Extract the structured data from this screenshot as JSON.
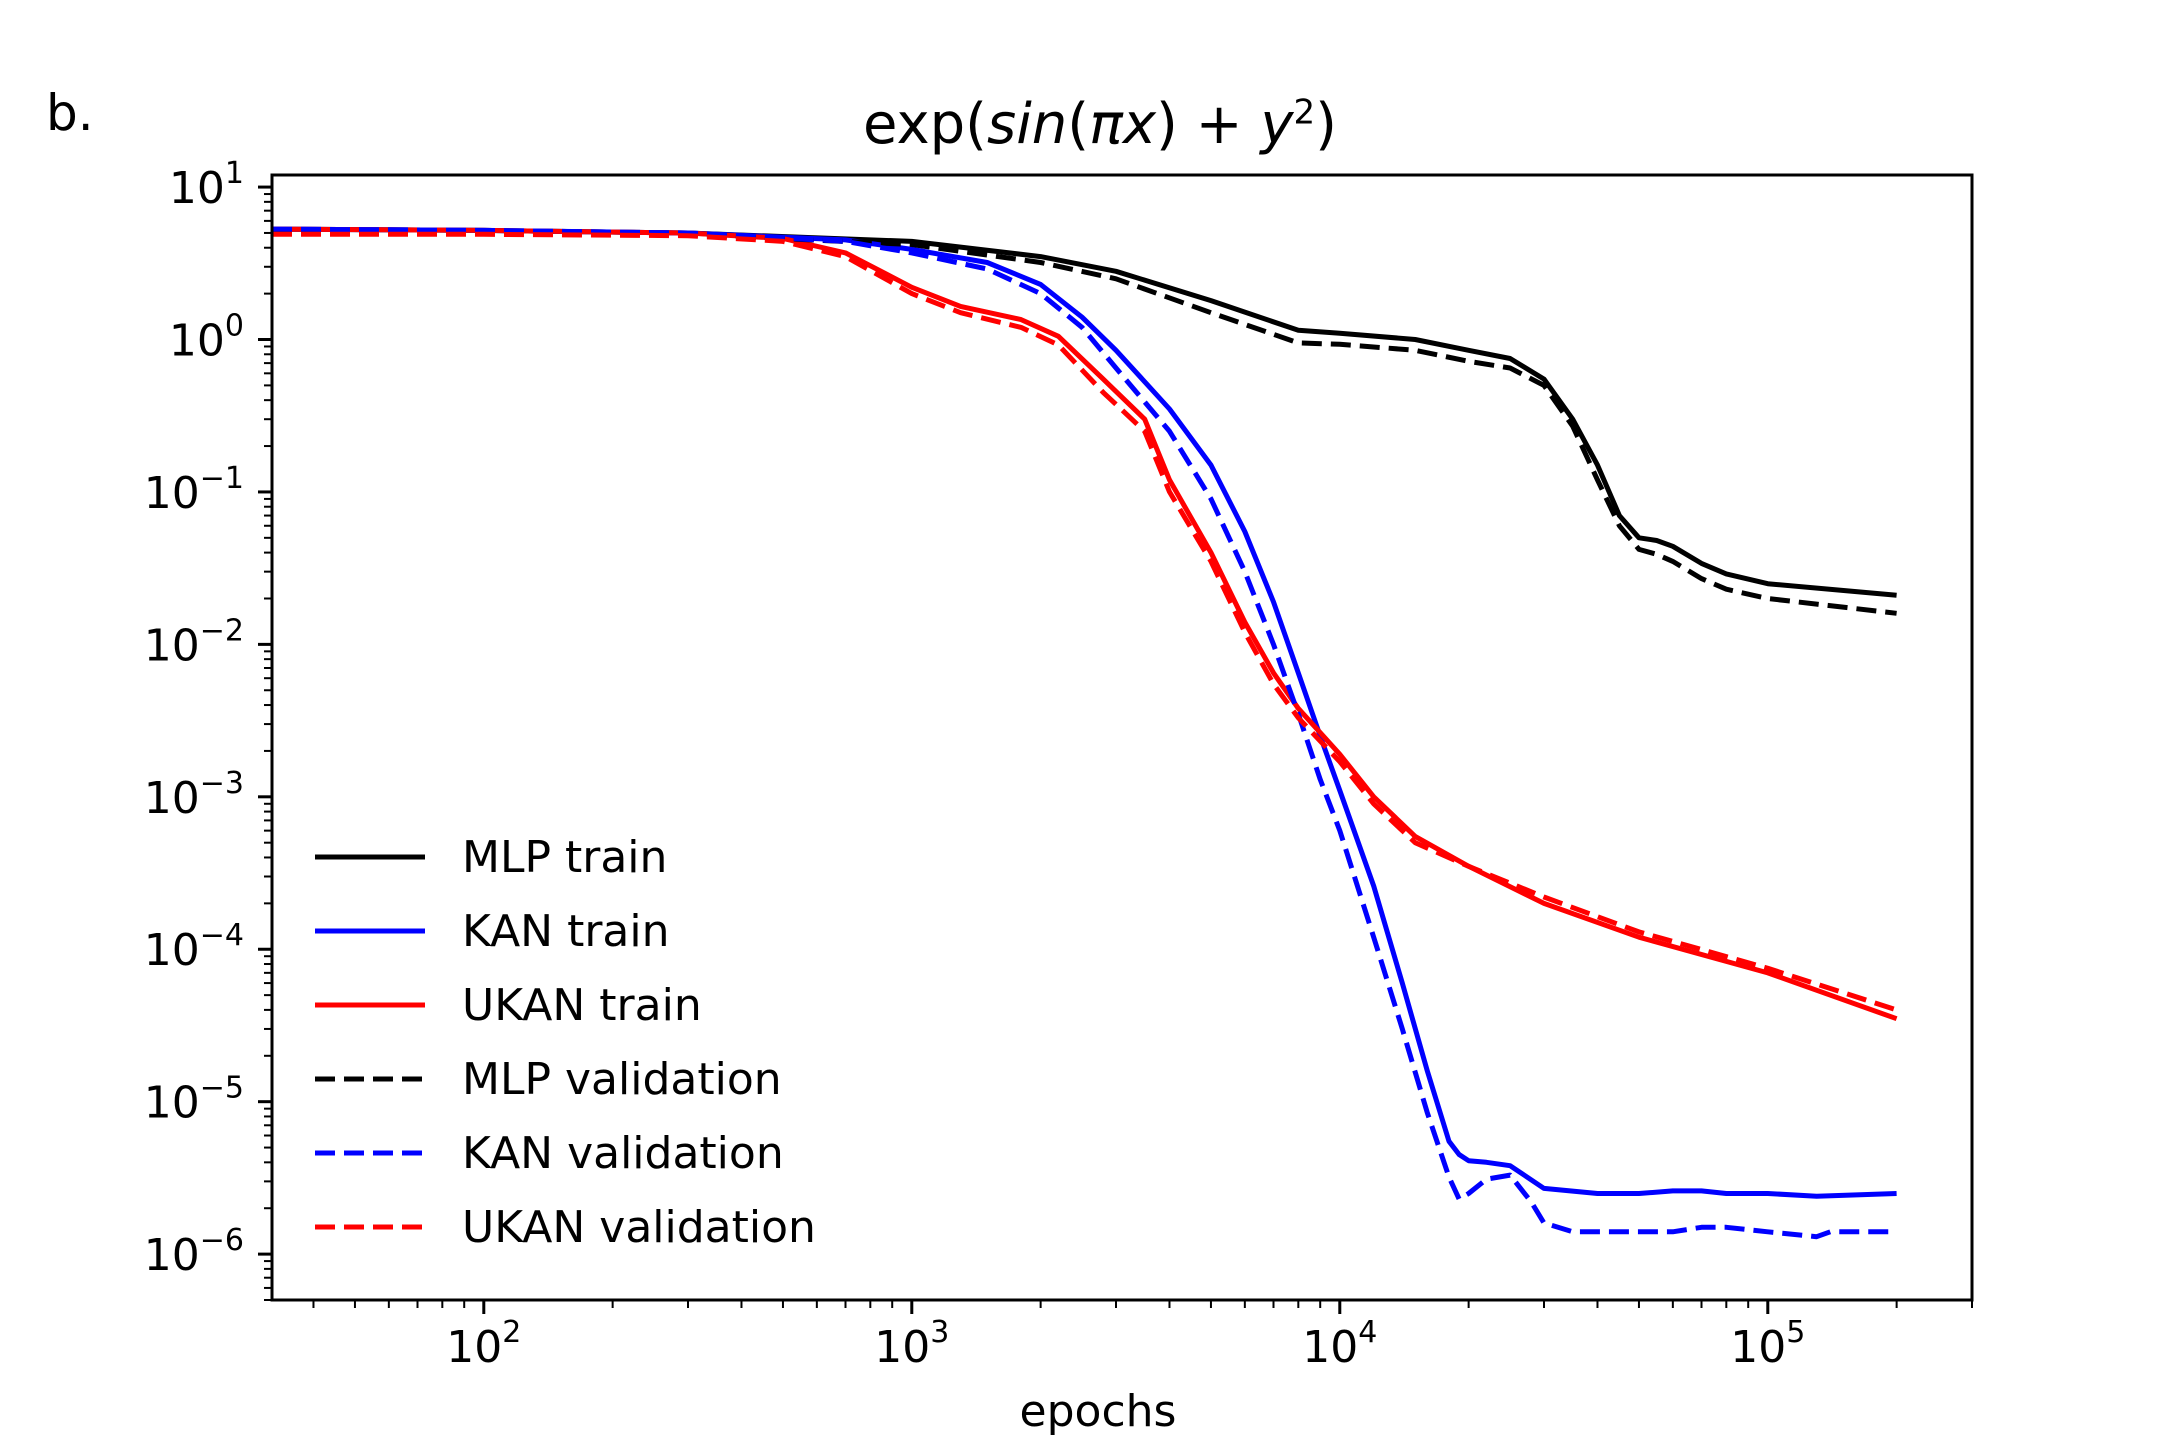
{
  "panel_label": "b.",
  "chart_data": {
    "type": "line",
    "title": "exp(sin(πx) + y²)",
    "title_parts": {
      "pre": "exp(",
      "func": "sin",
      "open": "(",
      "pix": "πx",
      "mid": ") + ",
      "yvar": "y",
      "sup": "2",
      "post": ")"
    },
    "xlabel": "epochs",
    "ylabel": "",
    "xscale": "log",
    "yscale": "log",
    "xlim": [
      32,
      300000
    ],
    "ylim": [
      5e-07,
      12
    ],
    "xticks": [
      {
        "value": 100,
        "base": "10",
        "exp": "2"
      },
      {
        "value": 1000,
        "base": "10",
        "exp": "3"
      },
      {
        "value": 10000,
        "base": "10",
        "exp": "4"
      },
      {
        "value": 100000,
        "base": "10",
        "exp": "5"
      }
    ],
    "yticks": [
      {
        "value": 10,
        "base": "10",
        "exp": "1"
      },
      {
        "value": 1,
        "base": "10",
        "exp": "0"
      },
      {
        "value": 0.1,
        "base": "10",
        "exp": "−1"
      },
      {
        "value": 0.01,
        "base": "10",
        "exp": "−2"
      },
      {
        "value": 0.001,
        "base": "10",
        "exp": "−3"
      },
      {
        "value": 0.0001,
        "base": "10",
        "exp": "−4"
      },
      {
        "value": 1e-05,
        "base": "10",
        "exp": "−5"
      },
      {
        "value": 1e-06,
        "base": "10",
        "exp": "−6"
      }
    ],
    "legend": {
      "placement": "lower-left"
    },
    "series": [
      {
        "name": "MLP train",
        "color": "#000000",
        "dash": "solid",
        "x": [
          32,
          100,
          300,
          1000,
          2000,
          3000,
          5000,
          8000,
          10000,
          15000,
          20000,
          25000,
          30000,
          35000,
          40000,
          45000,
          50000,
          55000,
          60000,
          70000,
          80000,
          100000,
          200000
        ],
        "y": [
          5.3,
          5.2,
          5.0,
          4.4,
          3.5,
          2.8,
          1.8,
          1.15,
          1.1,
          1.0,
          0.85,
          0.75,
          0.55,
          0.3,
          0.15,
          0.07,
          0.05,
          0.048,
          0.044,
          0.034,
          0.029,
          0.025,
          0.021
        ]
      },
      {
        "name": "KAN train",
        "color": "#0000ff",
        "dash": "solid",
        "x": [
          32,
          100,
          300,
          700,
          1000,
          1500,
          2000,
          2500,
          3000,
          4000,
          5000,
          6000,
          7000,
          8000,
          9000,
          10000,
          12000,
          14000,
          16000,
          18000,
          19000,
          20000,
          22000,
          25000,
          30000,
          40000,
          50000,
          60000,
          70000,
          80000,
          100000,
          130000,
          200000
        ],
        "y": [
          5.3,
          5.2,
          5.0,
          4.5,
          3.9,
          3.2,
          2.3,
          1.4,
          0.85,
          0.35,
          0.15,
          0.055,
          0.019,
          0.0065,
          0.0025,
          0.0011,
          0.00026,
          6e-05,
          1.6e-05,
          5.5e-06,
          4.5e-06,
          4.1e-06,
          4e-06,
          3.8e-06,
          2.7e-06,
          2.5e-06,
          2.5e-06,
          2.6e-06,
          2.6e-06,
          2.5e-06,
          2.5e-06,
          2.4e-06,
          2.5e-06
        ]
      },
      {
        "name": "UKAN train",
        "color": "#ff0000",
        "dash": "solid",
        "x": [
          32,
          100,
          300,
          500,
          700,
          1000,
          1300,
          1800,
          2200,
          2800,
          3500,
          4000,
          5000,
          6000,
          7000,
          8000,
          10000,
          12000,
          15000,
          20000,
          30000,
          50000,
          100000,
          200000
        ],
        "y": [
          5.3,
          5.2,
          5.0,
          4.6,
          3.7,
          2.2,
          1.65,
          1.35,
          1.05,
          0.55,
          0.3,
          0.12,
          0.04,
          0.014,
          0.0065,
          0.0038,
          0.0019,
          0.001,
          0.00055,
          0.00035,
          0.0002,
          0.00012,
          7e-05,
          3.5e-05
        ]
      },
      {
        "name": "MLP validation",
        "color": "#000000",
        "dash": "dashed",
        "x": [
          32,
          100,
          300,
          1000,
          2000,
          3000,
          5000,
          8000,
          10000,
          15000,
          20000,
          25000,
          30000,
          35000,
          40000,
          45000,
          50000,
          55000,
          60000,
          70000,
          80000,
          100000,
          200000
        ],
        "y": [
          5.0,
          5.0,
          4.9,
          4.2,
          3.2,
          2.5,
          1.5,
          0.95,
          0.93,
          0.85,
          0.72,
          0.65,
          0.5,
          0.27,
          0.12,
          0.06,
          0.042,
          0.039,
          0.035,
          0.027,
          0.023,
          0.02,
          0.016
        ]
      },
      {
        "name": "KAN validation",
        "color": "#0000ff",
        "dash": "dashed",
        "x": [
          32,
          100,
          300,
          700,
          1000,
          1500,
          2000,
          2500,
          3000,
          4000,
          5000,
          6000,
          7000,
          8000,
          9000,
          10000,
          12000,
          14000,
          16000,
          18000,
          19000,
          20000,
          22000,
          25000,
          28000,
          30000,
          35000,
          40000,
          50000,
          60000,
          70000,
          80000,
          100000,
          130000,
          140000,
          200000
        ],
        "y": [
          5.3,
          5.2,
          5.0,
          4.4,
          3.7,
          2.9,
          2.0,
          1.2,
          0.65,
          0.25,
          0.09,
          0.03,
          0.01,
          0.0035,
          0.0013,
          0.0006,
          0.00012,
          3e-05,
          8.5e-06,
          3.2e-06,
          2.3e-06,
          2.5e-06,
          3.1e-06,
          3.3e-06,
          2.2e-06,
          1.6e-06,
          1.4e-06,
          1.4e-06,
          1.4e-06,
          1.4e-06,
          1.5e-06,
          1.5e-06,
          1.4e-06,
          1.3e-06,
          1.4e-06,
          1.4e-06
        ]
      },
      {
        "name": "UKAN validation",
        "color": "#ff0000",
        "dash": "dashed",
        "x": [
          32,
          100,
          300,
          500,
          700,
          1000,
          1300,
          1800,
          2200,
          2800,
          3500,
          4000,
          5000,
          6000,
          7000,
          8000,
          10000,
          12000,
          15000,
          20000,
          30000,
          50000,
          100000,
          200000
        ],
        "y": [
          4.9,
          4.9,
          4.8,
          4.4,
          3.5,
          2.0,
          1.5,
          1.2,
          0.92,
          0.45,
          0.25,
          0.1,
          0.035,
          0.012,
          0.0055,
          0.0033,
          0.0017,
          0.0009,
          0.0005,
          0.00035,
          0.00022,
          0.00013,
          7.5e-05,
          4e-05
        ]
      }
    ]
  }
}
